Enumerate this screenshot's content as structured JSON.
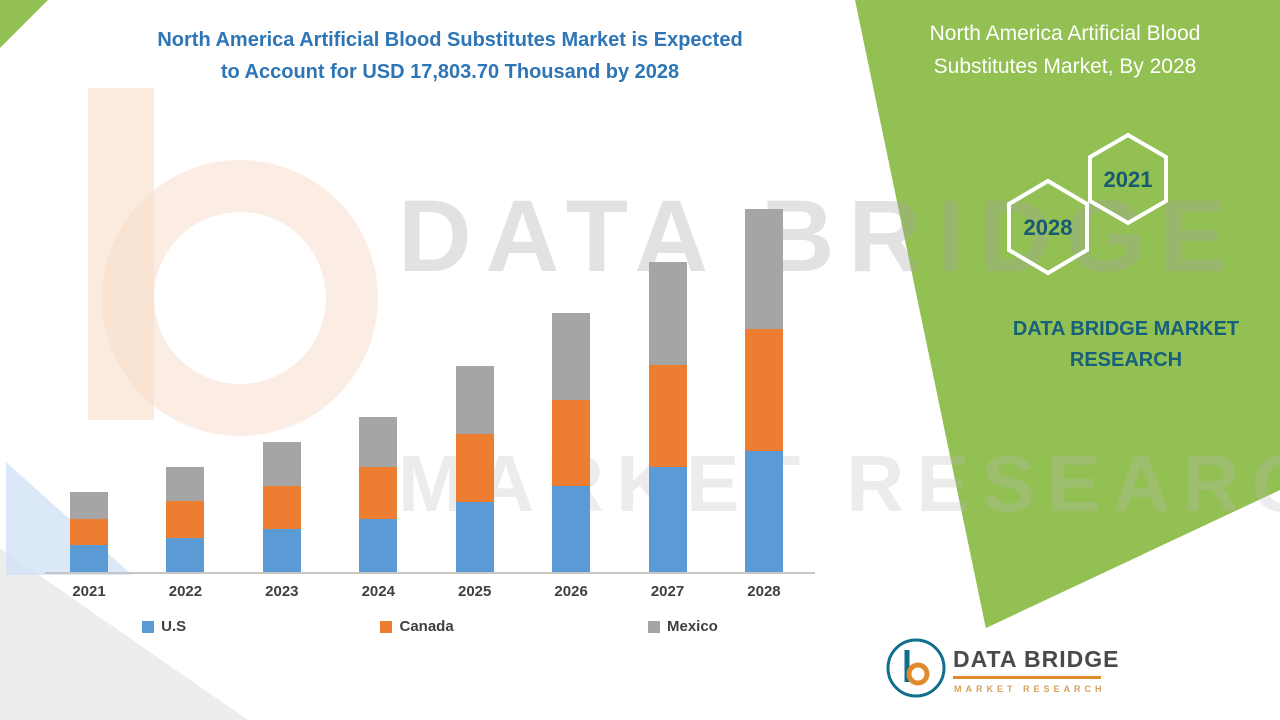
{
  "main_title": {
    "line1": "North America Artificial Blood Substitutes Market is Expected",
    "line2": "to Account for USD 17,803.70 Thousand by 2028"
  },
  "side_panel": {
    "title_line1": "North America Artificial Blood",
    "title_line2": "Substitutes Market, By 2028",
    "hexagon_left_year": "2028",
    "hexagon_right_year": "2021",
    "brand_line1": "DATA BRIDGE MARKET",
    "brand_line2": "RESEARCH",
    "bg_color": "#93c052",
    "accent_text_color": "#17607c"
  },
  "watermark": {
    "line1": "DATA BRIDGE",
    "line2": "MARKET RESEARCH"
  },
  "logo": {
    "name": "DATA BRIDGE",
    "subtitle": "MARKET RESEARCH"
  },
  "chart_data": {
    "type": "bar",
    "stacked": true,
    "title": "North America Artificial Blood Substitutes Market is Expected to Account for USD 17,803.70 Thousand by 2028",
    "unit": "USD Thousand",
    "highlight_value": "USD 17,803.70 Thousand by 2028",
    "categories": [
      "2021",
      "2022",
      "2023",
      "2024",
      "2025",
      "2026",
      "2027",
      "2028"
    ],
    "series": [
      {
        "name": "U.S",
        "color": "#5b9bd5",
        "values": [
          1370,
          1720,
          2160,
          2650,
          3480,
          4260,
          5200,
          5980
        ]
      },
      {
        "name": "Canada",
        "color": "#ed7d31",
        "values": [
          1280,
          1810,
          2110,
          2550,
          3330,
          4220,
          4950,
          5930
        ]
      },
      {
        "name": "Mexico",
        "color": "#a5a5a5",
        "values": [
          1320,
          1670,
          2150,
          2450,
          3330,
          4220,
          5050,
          5893.7
        ]
      }
    ],
    "totals": [
      3970,
      5200,
      6420,
      7650,
      10140,
      12700,
      15200,
      17803.7
    ],
    "xlabel": "",
    "ylabel": "",
    "ylim": [
      0,
      19800
    ],
    "grid": false,
    "legend_position": "bottom"
  }
}
